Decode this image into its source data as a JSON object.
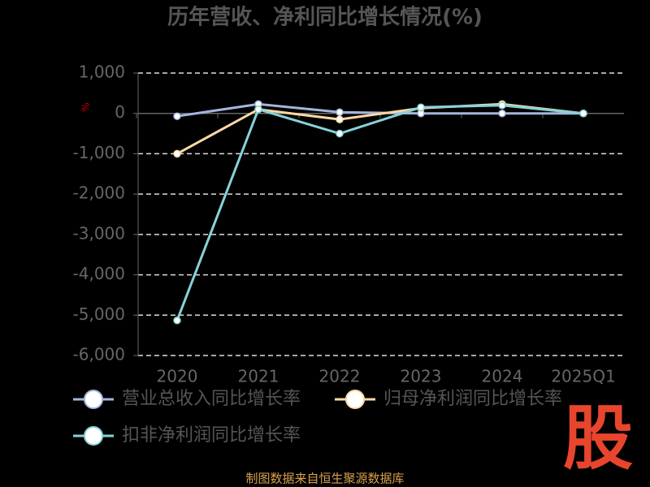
{
  "chart_data": {
    "type": "line",
    "title": "历年营收、净利同比增长情况(%)",
    "y_label": "%",
    "categories": [
      "2020",
      "2021",
      "2022",
      "2023",
      "2024",
      "2025Q1"
    ],
    "series": [
      {
        "name": "营业总收入同比增长率",
        "color": "#a3b6dc",
        "values": [
          -70,
          230,
          30,
          0,
          0,
          0
        ]
      },
      {
        "name": "归母净利润同比增长率",
        "color": "#fcd9a4",
        "values": [
          -1000,
          100,
          -150,
          130,
          230,
          0
        ]
      },
      {
        "name": "扣非净利润同比增长率",
        "color": "#86d3d9",
        "values": [
          -5130,
          100,
          -500,
          150,
          200,
          0
        ]
      }
    ],
    "ylim": [
      -6000,
      1000
    ],
    "yticks": [
      {
        "value": -6000,
        "label": "-6,000"
      },
      {
        "value": -5000,
        "label": "-5,000"
      },
      {
        "value": -4000,
        "label": "-4,000"
      },
      {
        "value": -3000,
        "label": "-3,000"
      },
      {
        "value": -2000,
        "label": "-2,000"
      },
      {
        "value": -1000,
        "label": "-1,000"
      },
      0,
      {
        "value": 1000,
        "label": "1,000"
      }
    ],
    "grid": true,
    "footer": "制图数据来自恒生聚源数据库",
    "logo": "股"
  }
}
